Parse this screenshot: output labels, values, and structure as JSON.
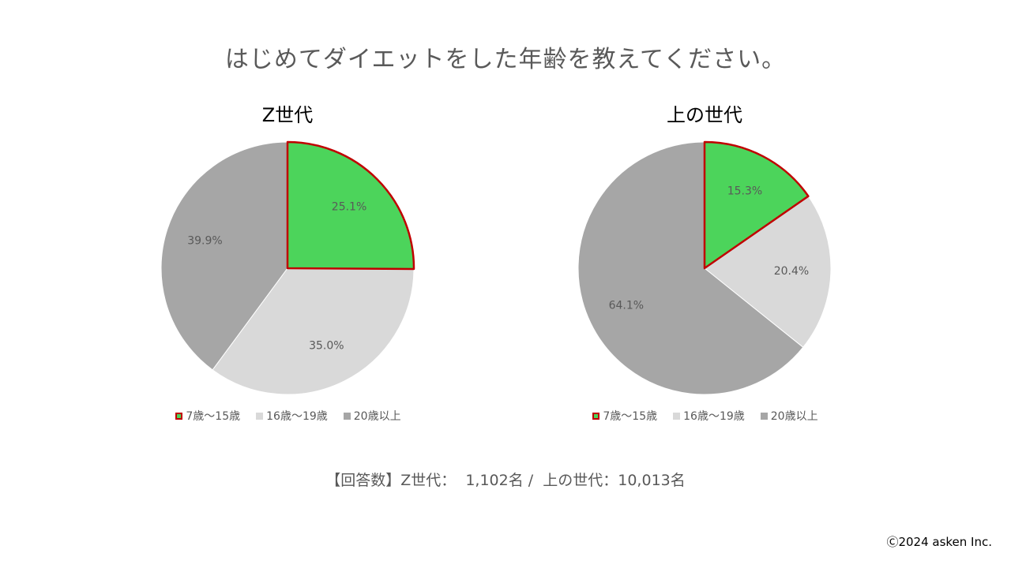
{
  "title": "はじめてダイエットをした年齢を教えてください。",
  "chart_data": [
    {
      "type": "pie",
      "title": "Z世代",
      "categories": [
        "7歳〜15歳",
        "16歳〜19歳",
        "20歳以上"
      ],
      "values": [
        25.1,
        35.0,
        39.9
      ],
      "data_labels": [
        "25.1%",
        "35.0%",
        "39.9%"
      ],
      "colors": [
        "#4CD45B",
        "#D9D9D9",
        "#A6A6A6"
      ],
      "highlight": {
        "category": "7歳〜15歳",
        "border_color": "#C00000"
      },
      "legend": "bottom"
    },
    {
      "type": "pie",
      "title": "上の世代",
      "categories": [
        "7歳〜15歳",
        "16歳〜19歳",
        "20歳以上"
      ],
      "values": [
        15.3,
        20.4,
        64.1
      ],
      "data_labels": [
        "15.3%",
        "20.4%",
        "64.1%"
      ],
      "colors": [
        "#4CD45B",
        "#D9D9D9",
        "#A6A6A6"
      ],
      "highlight": {
        "category": "7歳〜15歳",
        "border_color": "#C00000"
      },
      "legend": "bottom"
    }
  ],
  "footnote": "【回答数】Z世代：  1,102名 /  上の世代：10,013名",
  "copyright": "Ⓒ2024 asken Inc."
}
